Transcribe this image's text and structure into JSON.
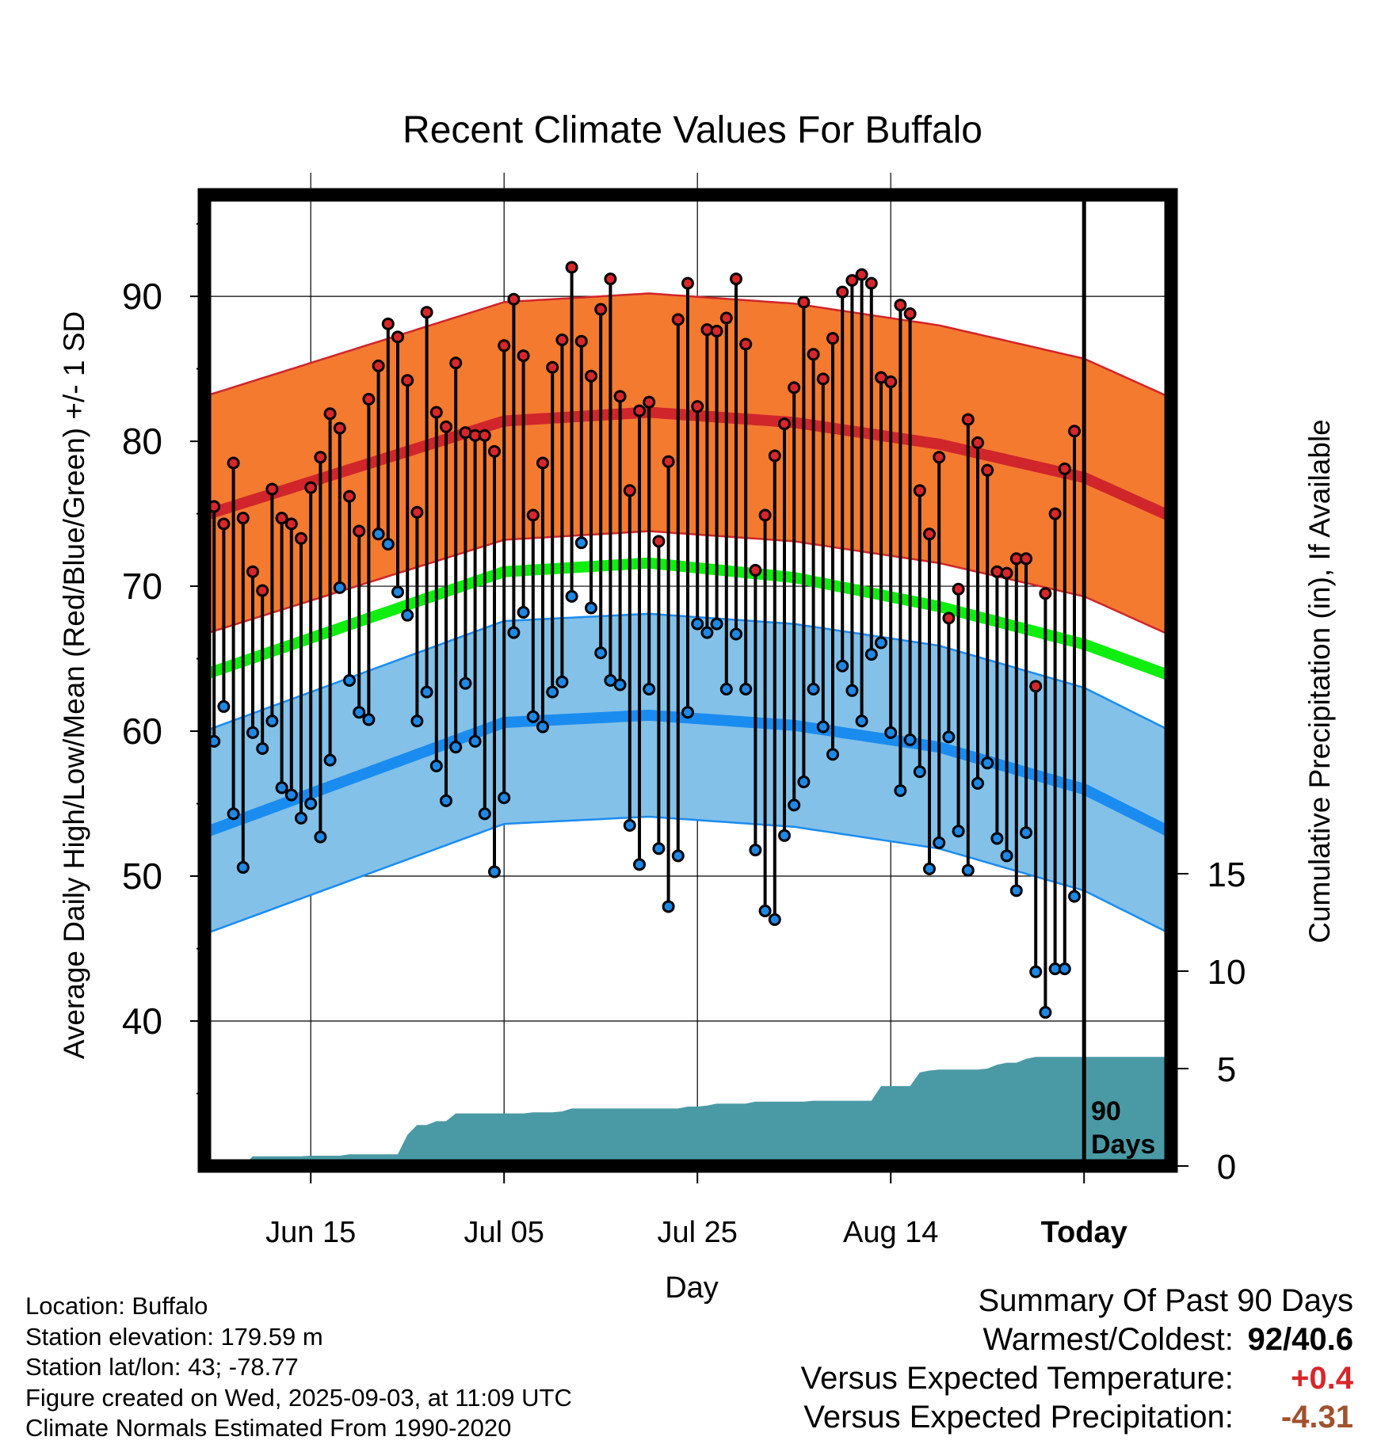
{
  "chart_data": {
    "type": "line",
    "title": "Recent Climate Values For Buffalo",
    "xlabel": "Day",
    "ylabel_left": "Average Daily High/Low/Mean (Red/Blue/Green) +/- 1 SD",
    "ylabel_right": "Cumulative Precipitation (in), If Available",
    "x_tick_labels": [
      "Jun 15",
      "Jul 05",
      "Jul 25",
      "Aug 14",
      "Today"
    ],
    "x_tick_days": [
      10,
      30,
      50,
      70,
      90
    ],
    "xlim": [
      -1,
      99
    ],
    "y_ticks": [
      40,
      50,
      60,
      70,
      80,
      90
    ],
    "ylim": [
      30,
      97
    ],
    "y2_ticks": [
      0,
      5,
      10,
      15
    ],
    "today_marker_label": "90\nDays",
    "normals": {
      "high": {
        "day": [
          -1,
          30,
          45,
          60,
          75,
          90,
          99
        ],
        "mean": [
          74.9,
          81.4,
          82.0,
          81.3,
          79.8,
          77.5,
          74.8
        ],
        "sd": 8.2
      },
      "mean": {
        "day": [
          -1,
          30,
          45,
          60,
          75,
          90,
          99
        ],
        "value": [
          63.9,
          71.0,
          71.6,
          70.6,
          68.6,
          66.0,
          63.8
        ]
      },
      "low": {
        "day": [
          -1,
          30,
          45,
          60,
          75,
          90,
          99
        ],
        "mean": [
          53.0,
          60.6,
          61.1,
          60.4,
          58.9,
          56.0,
          53.0
        ],
        "sd": 7.0
      }
    },
    "series": [
      {
        "name": "High",
        "color": "#d9262b",
        "values": [
          75.5,
          74.3,
          78.5,
          74.7,
          71.0,
          69.7,
          76.7,
          74.7,
          74.3,
          73.3,
          76.8,
          78.9,
          81.9,
          80.9,
          76.2,
          73.8,
          82.9,
          85.2,
          88.1,
          87.2,
          84.2,
          75.1,
          88.9,
          82.0,
          81.0,
          85.4,
          80.6,
          80.4,
          80.4,
          79.3,
          86.6,
          89.8,
          85.9,
          74.9,
          78.5,
          85.1,
          87.0,
          92.0,
          86.9,
          84.5,
          89.1,
          91.2,
          83.1,
          76.6,
          82.1,
          82.7,
          73.1,
          78.6,
          88.4,
          90.9,
          82.4,
          87.7,
          87.6,
          88.5,
          91.2,
          86.7,
          71.1,
          74.9,
          79.0,
          81.2,
          83.7,
          89.6,
          86.0,
          84.3,
          87.1,
          90.3,
          91.1,
          91.5,
          90.9,
          84.4,
          84.1,
          89.4,
          88.8,
          76.6,
          73.6,
          78.9,
          67.8,
          69.8,
          81.5,
          79.9,
          78.0,
          71.0,
          70.9,
          71.9,
          71.9,
          63.1,
          69.5,
          75.0,
          78.1,
          80.7
        ]
      },
      {
        "name": "Low",
        "color": "#1e88e5",
        "values": [
          59.3,
          61.7,
          54.3,
          50.6,
          59.9,
          58.8,
          60.7,
          56.1,
          55.6,
          54.0,
          55.0,
          52.7,
          58.0,
          69.9,
          63.5,
          61.3,
          60.8,
          73.6,
          72.9,
          69.6,
          68.0,
          60.7,
          62.7,
          57.6,
          55.2,
          58.9,
          63.3,
          59.3,
          54.3,
          50.3,
          55.4,
          66.8,
          68.2,
          61.0,
          60.3,
          62.7,
          63.4,
          69.3,
          73.0,
          68.5,
          65.4,
          63.5,
          63.2,
          53.5,
          50.8,
          62.9,
          51.9,
          47.9,
          51.4,
          61.3,
          67.4,
          66.8,
          67.4,
          62.9,
          66.7,
          62.9,
          51.8,
          47.6,
          47.0,
          52.8,
          54.9,
          56.5,
          62.9,
          60.3,
          58.4,
          64.5,
          62.8,
          60.7,
          65.3,
          66.1,
          59.9,
          55.9,
          59.4,
          57.2,
          50.5,
          52.3,
          59.6,
          53.1,
          50.4,
          56.4,
          57.8,
          52.6,
          51.4,
          49.0,
          53.0,
          43.4,
          40.6,
          43.6,
          43.6,
          48.6
        ]
      },
      {
        "name": "Cumulative Precipitation",
        "color": "#4a9aa5",
        "cumulative": [
          0,
          0,
          0,
          0,
          0.5,
          0.5,
          0.5,
          0.5,
          0.5,
          0.5,
          0.53,
          0.53,
          0.53,
          0.53,
          0.6,
          0.6,
          0.6,
          0.6,
          0.6,
          0.6,
          1.6,
          2.1,
          2.1,
          2.3,
          2.3,
          2.7,
          2.7,
          2.7,
          2.7,
          2.7,
          2.7,
          2.7,
          2.7,
          2.75,
          2.75,
          2.75,
          2.8,
          2.95,
          2.95,
          2.95,
          2.95,
          2.95,
          2.95,
          2.95,
          2.95,
          2.95,
          2.95,
          2.95,
          2.95,
          3.05,
          3.05,
          3.1,
          3.2,
          3.2,
          3.2,
          3.2,
          3.3,
          3.3,
          3.3,
          3.3,
          3.3,
          3.3,
          3.35,
          3.35,
          3.35,
          3.35,
          3.35,
          3.35,
          3.35,
          4.1,
          4.1,
          4.1,
          4.1,
          4.8,
          4.9,
          4.95,
          4.95,
          4.95,
          4.95,
          4.95,
          5.0,
          5.2,
          5.3,
          5.3,
          5.5,
          5.6,
          5.6,
          5.6,
          5.6,
          5.6
        ]
      }
    ]
  },
  "info": {
    "location": "Location: Buffalo",
    "elevation": "Station elevation: 179.59 m",
    "latlon": "Station lat/lon: 43; -78.77",
    "created": "Figure created on Wed, 2025-09-03, at 11:09 UTC",
    "normals": "Climate Normals Estimated From 1990-2020"
  },
  "summary": {
    "title": "Summary Of Past 90 Days",
    "warmest_label": "Warmest/Coldest:",
    "warmest_value": "92/40.6",
    "temp_label": "Versus Expected Temperature:",
    "temp_value": "+0.4",
    "temp_color": "#d9262b",
    "precip_label": "Versus Expected Precipitation:",
    "precip_value": "-4.31",
    "precip_color": "#a0522d"
  },
  "colors": {
    "high_band": "#f47a30",
    "high_line": "#d0252a",
    "low_band": "#83c1e8",
    "low_line": "#1a8cf0",
    "mean_line": "#10ee10",
    "precip": "#4a9aa5"
  }
}
